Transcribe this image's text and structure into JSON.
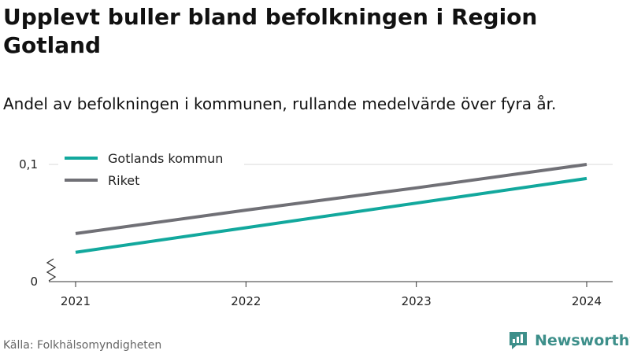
{
  "header": {
    "title": "Upplevt buller bland befolkningen i Region Gotland",
    "subtitle": "Andel av befolkningen i kommunen, rullande medelvärde över fyra år."
  },
  "footer": {
    "source": "Källa: Folkhälsomyndigheten",
    "brand": "Newsworthy"
  },
  "colors": {
    "gotland": "#12a89d",
    "riket": "#707076",
    "grid": "#d9d9d9",
    "axis": "#333333",
    "brand": "#3d8f8a"
  },
  "chart_data": {
    "type": "line",
    "title": "Upplevt buller bland befolkningen i Region Gotland",
    "subtitle": "Andel av befolkningen i kommunen, rullande medelvärde över fyra år.",
    "x": [
      "2021",
      "2022",
      "2023",
      "2024"
    ],
    "ylim": [
      0,
      0.1
    ],
    "y_ticks": [
      0,
      0.1
    ],
    "y_tick_labels": [
      "0",
      "0,1"
    ],
    "y_axis_break": true,
    "grid": true,
    "legend_position": "top-left",
    "series": [
      {
        "name": "Gotlands kommun",
        "color": "#12a89d",
        "values": [
          0.025,
          0.046,
          0.067,
          0.088
        ]
      },
      {
        "name": "Riket",
        "color": "#707076",
        "values": [
          0.041,
          0.061,
          0.08,
          0.1
        ]
      }
    ]
  }
}
